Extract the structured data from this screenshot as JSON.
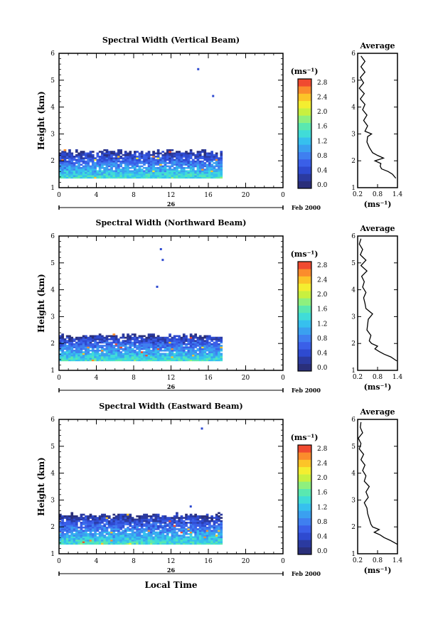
{
  "chart_data": [
    {
      "type": "heatmap",
      "title": "Spectral Width (Vertical Beam)",
      "ylabel": "Height (km)",
      "xlabel": "",
      "xticks": [
        "0",
        "4",
        "8",
        "12",
        "16",
        "20",
        "0"
      ],
      "yticks": [
        "1",
        "2",
        "3",
        "4",
        "5",
        "6"
      ],
      "xlim": [
        0,
        24
      ],
      "ylim": [
        1,
        6
      ],
      "day_label": "26",
      "date_label": "Feb 2000",
      "colorbar": {
        "unit": "(ms⁻¹)",
        "ticks": [
          "0.0",
          "0.4",
          "0.8",
          "1.2",
          "1.6",
          "2.0",
          "2.4",
          "2.8"
        ],
        "range": [
          0.0,
          3.0
        ]
      },
      "data_extent": {
        "time": [
          0,
          17.5
        ],
        "height": [
          1.35,
          2.4
        ]
      },
      "isolated_echoes": [
        {
          "time": 14.8,
          "height": 5.4
        },
        {
          "time": 16.4,
          "height": 4.4
        }
      ],
      "profile": {
        "title": "Average",
        "xlabel": "(ms⁻¹)",
        "xticks": [
          "0.2",
          "0.8",
          "1.4"
        ],
        "yticks": [
          "1",
          "2",
          "3",
          "4",
          "5",
          "6"
        ],
        "xlim": [
          0.2,
          1.4
        ],
        "height": [
          1.35,
          1.5,
          1.6,
          1.7,
          1.8,
          1.9,
          2.0,
          2.1,
          2.2,
          2.3,
          2.5,
          2.7,
          2.9,
          3.0,
          3.1,
          3.3,
          3.5,
          3.7,
          3.9,
          4.1,
          4.3,
          4.5,
          4.7,
          4.9,
          5.1,
          5.3,
          5.5,
          5.7,
          5.9
        ],
        "width": [
          1.35,
          1.25,
          1.12,
          0.92,
          0.88,
          0.9,
          0.72,
          0.98,
          0.8,
          0.65,
          0.55,
          0.48,
          0.5,
          0.62,
          0.42,
          0.5,
          0.38,
          0.48,
          0.35,
          0.42,
          0.28,
          0.4,
          0.25,
          0.38,
          0.28,
          0.42,
          0.3,
          0.42,
          0.3
        ]
      }
    },
    {
      "type": "heatmap",
      "title": "Spectral Width (Northward Beam)",
      "ylabel": "Height (km)",
      "xlabel": "",
      "xticks": [
        "0",
        "4",
        "8",
        "12",
        "16",
        "20",
        "0"
      ],
      "yticks": [
        "1",
        "2",
        "3",
        "4",
        "5",
        "6"
      ],
      "xlim": [
        0,
        24
      ],
      "ylim": [
        1,
        6
      ],
      "day_label": "26",
      "date_label": "Feb 2000",
      "colorbar": {
        "unit": "(ms⁻¹)",
        "ticks": [
          "0.0",
          "0.4",
          "0.8",
          "1.2",
          "1.6",
          "2.0",
          "2.4",
          "2.8"
        ],
        "range": [
          0.0,
          3.0
        ]
      },
      "data_extent": {
        "time": [
          0,
          17.5
        ],
        "height": [
          1.35,
          2.35
        ]
      },
      "isolated_echoes": [
        {
          "time": 10.8,
          "height": 5.5
        },
        {
          "time": 11.0,
          "height": 5.1
        },
        {
          "time": 10.4,
          "height": 4.1
        }
      ],
      "profile": {
        "title": "Average",
        "xlabel": "(ms⁻¹)",
        "xticks": [
          "0.2",
          "0.8",
          "1.4"
        ],
        "yticks": [
          "1",
          "2",
          "3",
          "4",
          "5",
          "6"
        ],
        "xlim": [
          0.2,
          1.4
        ],
        "height": [
          1.35,
          1.5,
          1.6,
          1.7,
          1.8,
          1.9,
          2.0,
          2.1,
          2.3,
          2.5,
          2.7,
          2.9,
          3.1,
          3.3,
          3.5,
          3.7,
          3.9,
          4.1,
          4.3,
          4.5,
          4.7,
          4.9,
          5.1,
          5.3,
          5.5,
          5.7,
          5.9
        ],
        "width": [
          1.38,
          1.2,
          1.0,
          0.85,
          0.72,
          0.8,
          0.62,
          0.55,
          0.6,
          0.48,
          0.5,
          0.52,
          0.65,
          0.45,
          0.42,
          0.38,
          0.45,
          0.35,
          0.4,
          0.32,
          0.48,
          0.3,
          0.45,
          0.28,
          0.35,
          0.25,
          0.3
        ]
      }
    },
    {
      "type": "heatmap",
      "title": "Spectral Width (Eastward Beam)",
      "ylabel": "Height (km)",
      "xlabel": "Local Time",
      "xticks": [
        "0",
        "4",
        "8",
        "12",
        "16",
        "20",
        "0"
      ],
      "yticks": [
        "1",
        "2",
        "3",
        "4",
        "5",
        "6"
      ],
      "xlim": [
        0,
        24
      ],
      "ylim": [
        1,
        6
      ],
      "day_label": "26",
      "date_label": "Feb 2000",
      "colorbar": {
        "unit": "(ms⁻¹)",
        "ticks": [
          "0.0",
          "0.4",
          "0.8",
          "1.2",
          "1.6",
          "2.0",
          "2.4",
          "2.8"
        ],
        "range": [
          0.0,
          3.0
        ]
      },
      "data_extent": {
        "time": [
          0,
          17.5
        ],
        "height": [
          1.35,
          2.5
        ]
      },
      "isolated_echoes": [
        {
          "time": 15.2,
          "height": 5.65
        },
        {
          "time": 14.0,
          "height": 2.75
        }
      ],
      "profile": {
        "title": "Average",
        "xlabel": "(ms⁻¹)",
        "xticks": [
          "0.2",
          "0.8",
          "1.4"
        ],
        "yticks": [
          "1",
          "2",
          "3",
          "4",
          "5",
          "6"
        ],
        "xlim": [
          0.2,
          1.4
        ],
        "height": [
          1.35,
          1.5,
          1.6,
          1.7,
          1.8,
          1.9,
          2.0,
          2.1,
          2.3,
          2.5,
          2.7,
          2.9,
          3.1,
          3.3,
          3.5,
          3.7,
          3.9,
          4.1,
          4.3,
          4.5,
          4.7,
          4.9,
          5.1,
          5.3,
          5.5,
          5.7,
          5.9
        ],
        "width": [
          1.4,
          1.18,
          1.0,
          0.88,
          0.7,
          0.85,
          0.65,
          0.6,
          0.55,
          0.5,
          0.48,
          0.4,
          0.52,
          0.45,
          0.55,
          0.4,
          0.45,
          0.35,
          0.42,
          0.3,
          0.38,
          0.25,
          0.3,
          0.22,
          0.35,
          0.28,
          0.3
        ]
      }
    }
  ]
}
